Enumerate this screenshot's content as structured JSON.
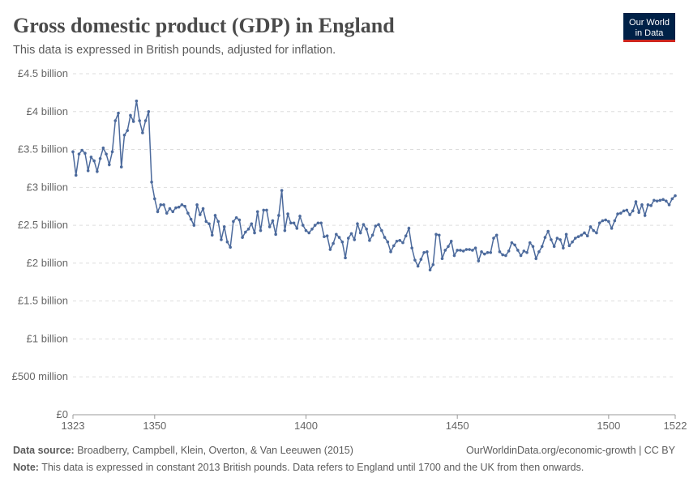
{
  "chart_data": {
    "type": "line",
    "title": "Gross domestic product (GDP) in England",
    "subtitle": "This data is expressed in British pounds, adjusted for inflation.",
    "logo": [
      "Our World",
      "in Data"
    ],
    "source_label": "Data source:",
    "source": "Broadberry, Campbell, Klein, Overton, & Van Leeuwen (2015)",
    "url": "OurWorldinData.org/economic-growth | CC BY",
    "note_label": "Note:",
    "note": "This data is expressed in constant 2013 British pounds. Data refers to England until 1700 and the UK from then onwards.",
    "color": "#4c6a9c",
    "grid": true,
    "xlim": [
      1323,
      1522
    ],
    "xticks": [
      1323,
      1350,
      1400,
      1450,
      1500,
      1522
    ],
    "ylim": [
      0,
      4500000000.0
    ],
    "yticks": [
      {
        "value": 0,
        "label": "£0"
      },
      {
        "value": 500000000.0,
        "label": "£500 million"
      },
      {
        "value": 1000000000.0,
        "label": "£1 billion"
      },
      {
        "value": 1500000000.0,
        "label": "£1.5 billion"
      },
      {
        "value": 2000000000.0,
        "label": "£2 billion"
      },
      {
        "value": 2500000000.0,
        "label": "£2.5 billion"
      },
      {
        "value": 3000000000.0,
        "label": "£3 billion"
      },
      {
        "value": 3500000000.0,
        "label": "£3.5 billion"
      },
      {
        "value": 4000000000.0,
        "label": "£4 billion"
      },
      {
        "value": 4500000000.0,
        "label": "£4.5 billion"
      }
    ],
    "x": [
      1323,
      1324,
      1325,
      1326,
      1327,
      1328,
      1329,
      1330,
      1331,
      1332,
      1333,
      1334,
      1335,
      1336,
      1337,
      1338,
      1339,
      1340,
      1341,
      1342,
      1343,
      1344,
      1345,
      1346,
      1347,
      1348,
      1349,
      1350,
      1351,
      1352,
      1353,
      1354,
      1355,
      1356,
      1357,
      1358,
      1359,
      1360,
      1361,
      1362,
      1363,
      1364,
      1365,
      1366,
      1367,
      1368,
      1369,
      1370,
      1371,
      1372,
      1373,
      1374,
      1375,
      1376,
      1377,
      1378,
      1379,
      1380,
      1381,
      1382,
      1383,
      1384,
      1385,
      1386,
      1387,
      1388,
      1389,
      1390,
      1391,
      1392,
      1393,
      1394,
      1395,
      1396,
      1397,
      1398,
      1399,
      1400,
      1401,
      1402,
      1403,
      1404,
      1405,
      1406,
      1407,
      1408,
      1409,
      1410,
      1411,
      1412,
      1413,
      1414,
      1415,
      1416,
      1417,
      1418,
      1419,
      1420,
      1421,
      1422,
      1423,
      1424,
      1425,
      1426,
      1427,
      1428,
      1429,
      1430,
      1431,
      1432,
      1433,
      1434,
      1435,
      1436,
      1437,
      1438,
      1439,
      1440,
      1441,
      1442,
      1443,
      1444,
      1445,
      1446,
      1447,
      1448,
      1449,
      1450,
      1451,
      1452,
      1453,
      1454,
      1455,
      1456,
      1457,
      1458,
      1459,
      1460,
      1461,
      1462,
      1463,
      1464,
      1465,
      1466,
      1467,
      1468,
      1469,
      1470,
      1471,
      1472,
      1473,
      1474,
      1475,
      1476,
      1477,
      1478,
      1479,
      1480,
      1481,
      1482,
      1483,
      1484,
      1485,
      1486,
      1487,
      1488,
      1489,
      1490,
      1491,
      1492,
      1493,
      1494,
      1495,
      1496,
      1497,
      1498,
      1499,
      1500,
      1501,
      1502,
      1503,
      1504,
      1505,
      1506,
      1507,
      1508,
      1509,
      1510,
      1511,
      1512,
      1513,
      1514,
      1515,
      1516,
      1517,
      1518,
      1519,
      1520,
      1521,
      1522
    ],
    "values": [
      3470000000.0,
      3160000000.0,
      3440000000.0,
      3490000000.0,
      3450000000.0,
      3220000000.0,
      3400000000.0,
      3350000000.0,
      3210000000.0,
      3380000000.0,
      3520000000.0,
      3440000000.0,
      3300000000.0,
      3470000000.0,
      3880000000.0,
      3980000000.0,
      3270000000.0,
      3690000000.0,
      3750000000.0,
      3950000000.0,
      3870000000.0,
      4140000000.0,
      3880000000.0,
      3720000000.0,
      3880000000.0,
      4000000000.0,
      3070000000.0,
      2850000000.0,
      2680000000.0,
      2770000000.0,
      2770000000.0,
      2660000000.0,
      2720000000.0,
      2680000000.0,
      2730000000.0,
      2740000000.0,
      2770000000.0,
      2750000000.0,
      2660000000.0,
      2580000000.0,
      2500000000.0,
      2770000000.0,
      2640000000.0,
      2720000000.0,
      2550000000.0,
      2520000000.0,
      2370000000.0,
      2630000000.0,
      2550000000.0,
      2310000000.0,
      2480000000.0,
      2280000000.0,
      2210000000.0,
      2550000000.0,
      2600000000.0,
      2570000000.0,
      2340000000.0,
      2410000000.0,
      2450000000.0,
      2520000000.0,
      2400000000.0,
      2680000000.0,
      2430000000.0,
      2700000000.0,
      2700000000.0,
      2480000000.0,
      2560000000.0,
      2380000000.0,
      2630000000.0,
      2960000000.0,
      2430000000.0,
      2650000000.0,
      2530000000.0,
      2530000000.0,
      2460000000.0,
      2620000000.0,
      2500000000.0,
      2430000000.0,
      2400000000.0,
      2450000000.0,
      2500000000.0,
      2530000000.0,
      2530000000.0,
      2350000000.0,
      2360000000.0,
      2180000000.0,
      2260000000.0,
      2380000000.0,
      2340000000.0,
      2280000000.0,
      2070000000.0,
      2330000000.0,
      2390000000.0,
      2310000000.0,
      2520000000.0,
      2400000000.0,
      2510000000.0,
      2450000000.0,
      2300000000.0,
      2370000000.0,
      2490000000.0,
      2510000000.0,
      2430000000.0,
      2340000000.0,
      2280000000.0,
      2150000000.0,
      2230000000.0,
      2290000000.0,
      2300000000.0,
      2270000000.0,
      2360000000.0,
      2460000000.0,
      2200000000.0,
      2040000000.0,
      1960000000.0,
      2050000000.0,
      2140000000.0,
      2150000000.0,
      1910000000.0,
      1980000000.0,
      2380000000.0,
      2370000000.0,
      2060000000.0,
      2170000000.0,
      2220000000.0,
      2290000000.0,
      2100000000.0,
      2170000000.0,
      2170000000.0,
      2160000000.0,
      2180000000.0,
      2180000000.0,
      2170000000.0,
      2200000000.0,
      2030000000.0,
      2150000000.0,
      2120000000.0,
      2140000000.0,
      2140000000.0,
      2330000000.0,
      2370000000.0,
      2150000000.0,
      2110000000.0,
      2100000000.0,
      2160000000.0,
      2270000000.0,
      2240000000.0,
      2170000000.0,
      2100000000.0,
      2160000000.0,
      2140000000.0,
      2270000000.0,
      2220000000.0,
      2060000000.0,
      2150000000.0,
      2220000000.0,
      2340000000.0,
      2420000000.0,
      2310000000.0,
      2220000000.0,
      2330000000.0,
      2310000000.0,
      2200000000.0,
      2380000000.0,
      2230000000.0,
      2280000000.0,
      2330000000.0,
      2350000000.0,
      2370000000.0,
      2400000000.0,
      2360000000.0,
      2480000000.0,
      2430000000.0,
      2400000000.0,
      2530000000.0,
      2560000000.0,
      2570000000.0,
      2550000000.0,
      2460000000.0,
      2560000000.0,
      2650000000.0,
      2660000000.0,
      2690000000.0,
      2700000000.0,
      2640000000.0,
      2690000000.0,
      2810000000.0,
      2670000000.0,
      2770000000.0,
      2630000000.0,
      2770000000.0,
      2760000000.0,
      2830000000.0,
      2820000000.0,
      2830000000.0,
      2840000000.0,
      2820000000.0,
      2770000000.0,
      2850000000.0,
      2890000000.0
    ]
  }
}
